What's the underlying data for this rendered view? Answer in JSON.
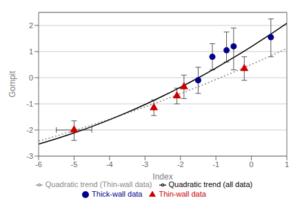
{
  "chart_data": {
    "type": "scatter",
    "x_label": "Index",
    "y_label": "Gompit",
    "xlim": [
      -6.0,
      1.0
    ],
    "ylim": [
      -3.0,
      2.5
    ],
    "xticks": [
      -6,
      -5,
      -4,
      -3,
      -2,
      -1,
      0,
      1
    ],
    "yticks": [
      -3,
      -2,
      -1,
      0,
      1,
      2
    ],
    "grid": true,
    "legend": "bottom",
    "series": [
      {
        "name": "Thin-wall data",
        "type": "scatter",
        "color": "#cc0000",
        "marker": "triangle",
        "x": [
          -5.0,
          -2.75,
          -2.1,
          -1.9,
          -0.2
        ],
        "values": [
          -2.0,
          -1.15,
          -0.7,
          -0.35,
          0.35
        ],
        "x_error": [
          0.5,
          0.0,
          0.0,
          0.0,
          0.0
        ],
        "y_error_low": [
          0.4,
          0.3,
          0.3,
          0.45,
          0.45
        ],
        "y_error_high": [
          0.35,
          0.3,
          0.3,
          0.45,
          0.45
        ]
      },
      {
        "name": "Thick-wall data",
        "type": "scatter",
        "color": "#00008b",
        "marker": "circle",
        "x": [
          -1.5,
          -1.1,
          -0.7,
          -0.5,
          0.55
        ],
        "values": [
          -0.1,
          0.8,
          1.05,
          1.2,
          1.55
        ],
        "x_error": [
          0.0,
          0.0,
          0.0,
          0.0,
          0.0
        ],
        "y_error_low": [
          0.5,
          0.5,
          0.45,
          0.9,
          0.75
        ],
        "y_error_high": [
          0.5,
          0.5,
          0.7,
          0.7,
          0.7
        ]
      },
      {
        "name": "Quadratic trend (Thin-wall data)",
        "type": "line",
        "color": "#888888",
        "line_style": "dotted",
        "x": [
          -6,
          -5.5,
          -5,
          -4.5,
          -4,
          -3.5,
          -3,
          -2.5,
          -2,
          -1.5,
          -1,
          -0.5,
          0,
          0.5,
          1
        ],
        "values": [
          -2.424,
          -2.228,
          -2.024,
          -1.81,
          -1.588,
          -1.357,
          -1.117,
          -0.868,
          -0.611,
          -0.345,
          -0.069,
          0.215,
          0.507,
          0.809,
          1.12
        ]
      },
      {
        "name": "Quadratic trend (all data)",
        "type": "line",
        "color": "#000000",
        "line_style": "solid",
        "x": [
          -6,
          -5.5,
          -5,
          -4.5,
          -4,
          -3.5,
          -3,
          -2.5,
          -2,
          -1.5,
          -1,
          -0.5,
          0,
          0.5,
          1
        ],
        "values": [
          -2.541,
          -2.337,
          -2.114,
          -1.871,
          -1.609,
          -1.327,
          -1.026,
          -0.705,
          -0.365,
          -0.006,
          0.373,
          0.771,
          1.189,
          1.626,
          2.083
        ]
      }
    ]
  }
}
